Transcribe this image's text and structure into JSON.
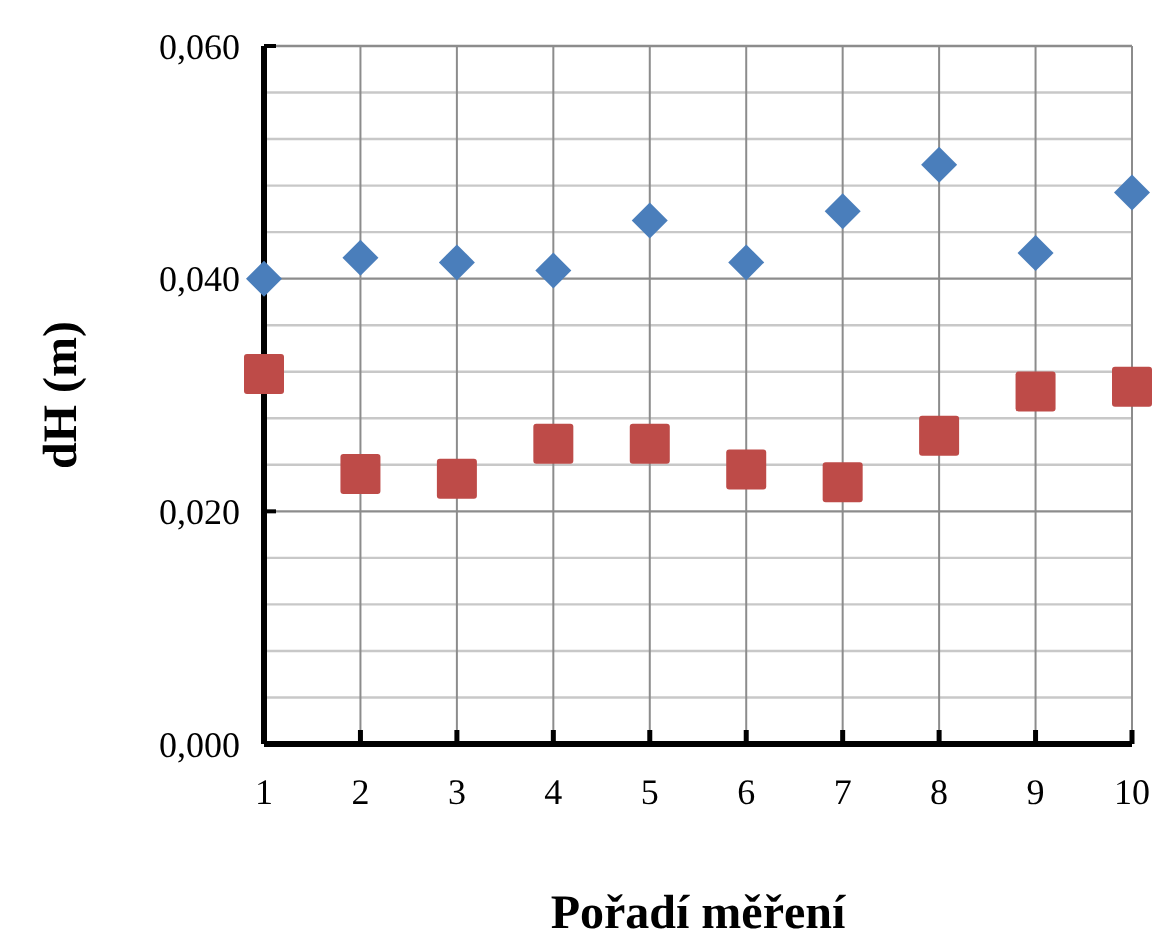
{
  "chart_data": {
    "type": "scatter",
    "xlabel": "Pořadí měření",
    "ylabel": "dH (m)",
    "x": [
      1,
      2,
      3,
      4,
      5,
      6,
      7,
      8,
      9,
      10
    ],
    "xlim": [
      1,
      10
    ],
    "xticks": [
      1,
      2,
      3,
      4,
      5,
      6,
      7,
      8,
      9,
      10
    ],
    "ylim": [
      0,
      0.06
    ],
    "yticks": [
      {
        "value": 0,
        "label": "0,000"
      },
      {
        "value": 0.004,
        "label": null
      },
      {
        "value": 0.008,
        "label": null
      },
      {
        "value": 0.012,
        "label": null
      },
      {
        "value": 0.016,
        "label": null
      },
      {
        "value": 0.02,
        "label": "0,020"
      },
      {
        "value": 0.024,
        "label": null
      },
      {
        "value": 0.028,
        "label": null
      },
      {
        "value": 0.032,
        "label": null
      },
      {
        "value": 0.036,
        "label": null
      },
      {
        "value": 0.04,
        "label": "0,040"
      },
      {
        "value": 0.044,
        "label": null
      },
      {
        "value": 0.048,
        "label": null
      },
      {
        "value": 0.052,
        "label": null
      },
      {
        "value": 0.056,
        "label": null
      },
      {
        "value": 0.06,
        "label": "0,060"
      }
    ],
    "grid": true,
    "series": [
      {
        "color": "#4a7ebb",
        "marker": "diamond",
        "values": [
          0.04,
          0.0418,
          0.0414,
          0.0407,
          0.045,
          0.0414,
          0.0458,
          0.0498,
          0.0422,
          0.0474
        ]
      },
      {
        "color": "#be4b48",
        "marker": "square",
        "values": [
          0.0318,
          0.0232,
          0.0228,
          0.0258,
          0.0258,
          0.0236,
          0.0225,
          0.0265,
          0.0303,
          0.0307
        ]
      }
    ]
  }
}
